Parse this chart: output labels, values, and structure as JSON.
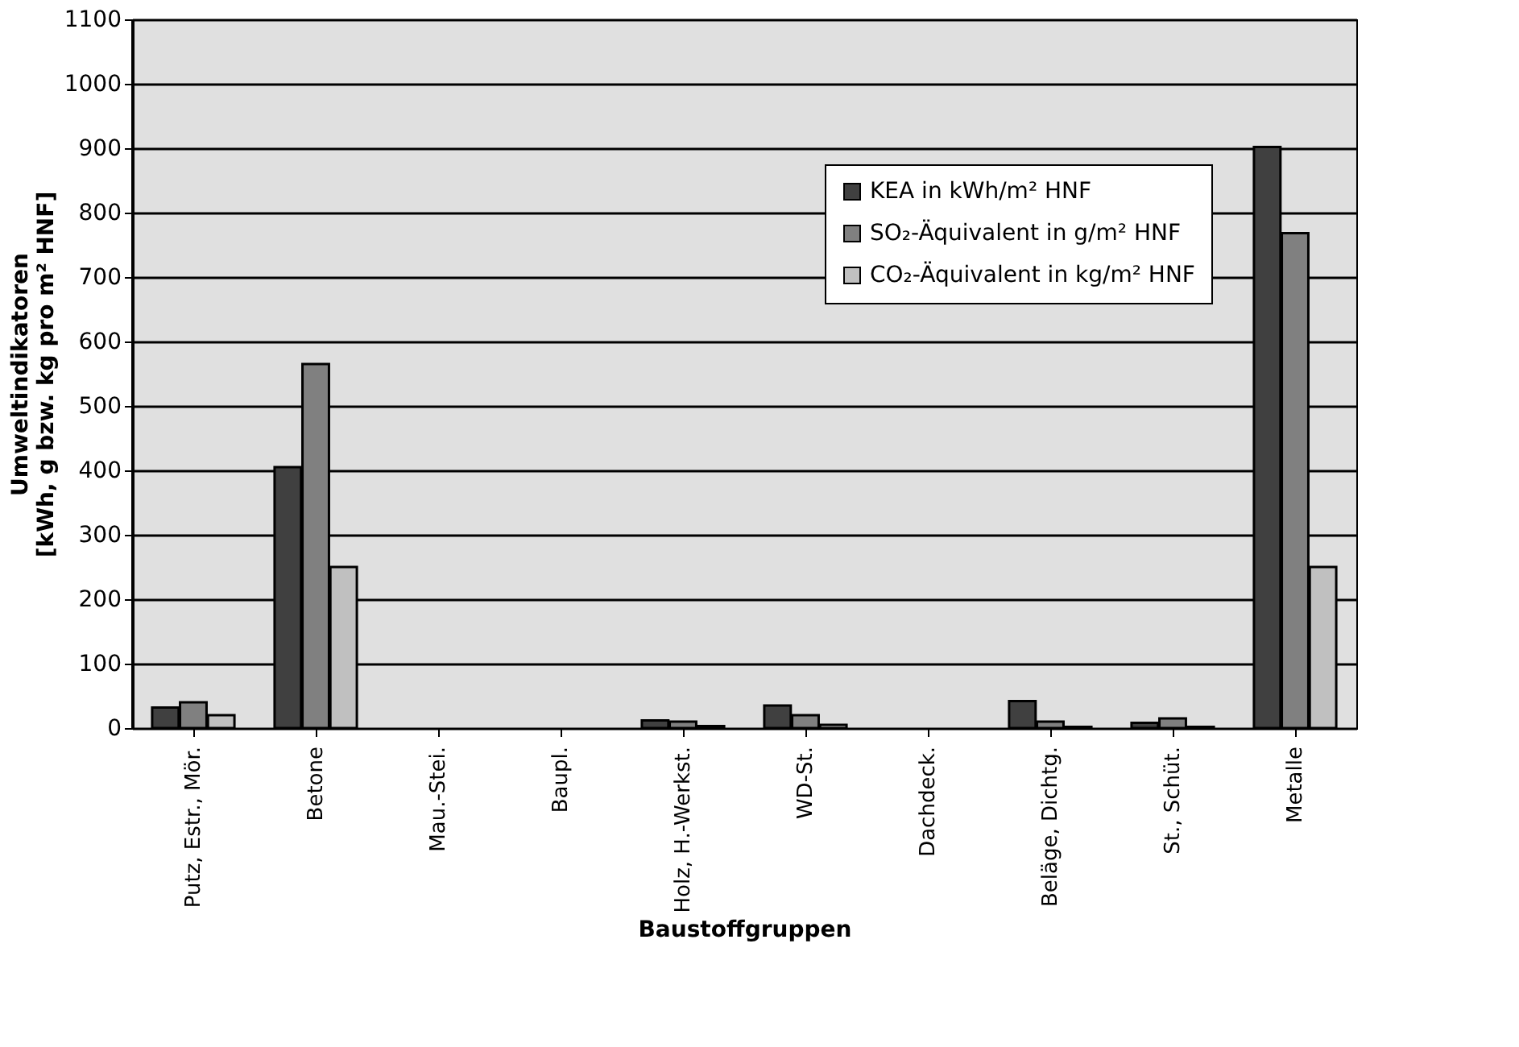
{
  "chart_data": {
    "type": "bar",
    "xlabel": "Baustoffgruppen",
    "ylabel": "Umweltindikatoren\n[kWh, g bzw. kg pro m² HNF]",
    "categories": [
      "Putz, Estr., Mör.",
      "Betone",
      "Mau.-Stei.",
      "Baupl.",
      "Holz, H.-Werkst.",
      "WD-St.",
      "Dachdeck.",
      "Beläge, Dichtg.",
      "St., Schüt.",
      "Metalle"
    ],
    "series": [
      {
        "name": "KEA in kWh/m² HNF",
        "color": "#404040",
        "values": [
          32,
          405,
          null,
          null,
          12,
          35,
          null,
          42,
          8,
          902
        ]
      },
      {
        "name": "SO₂-Äquivalent in g/m² HNF",
        "color": "#808080",
        "values": [
          40,
          565,
          null,
          null,
          10,
          20,
          null,
          10,
          15,
          768
        ]
      },
      {
        "name": "CO₂-Äquivalent in kg/m² HNF",
        "color": "#c0c0c0",
        "values": [
          20,
          250,
          null,
          null,
          3,
          5,
          null,
          2,
          2,
          250
        ]
      }
    ],
    "ylim": [
      0,
      1100
    ],
    "yticks": [
      0,
      100,
      200,
      300,
      400,
      500,
      600,
      700,
      800,
      900,
      1000,
      1100
    ],
    "grid": "y",
    "legend": "top right"
  }
}
